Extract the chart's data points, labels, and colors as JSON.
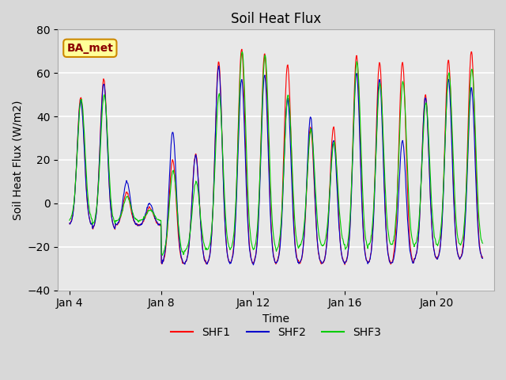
{
  "title": "Soil Heat Flux",
  "xlabel": "Time",
  "ylabel": "Soil Heat Flux (W/m2)",
  "ylim": [
    -40,
    80
  ],
  "yticks": [
    -40,
    -20,
    0,
    20,
    40,
    60,
    80
  ],
  "legend_labels": [
    "SHF1",
    "SHF2",
    "SHF3"
  ],
  "legend_colors": [
    "#ff0000",
    "#0000cc",
    "#00cc00"
  ],
  "annotation_text": "BA_met",
  "annotation_bg": "#ffff99",
  "annotation_border": "#cc8800",
  "xtick_labels": [
    "Jan 4",
    "Jan 8",
    "Jan 12",
    "Jan 16",
    "Jan 20"
  ],
  "xtick_positions": [
    4,
    8,
    12,
    16,
    20
  ],
  "xlim": [
    3.5,
    22.5
  ],
  "background_color": "#d8d8d8",
  "plot_bg_color": "#e8e8e8",
  "n_days": 18,
  "samples_per_day": 48,
  "start_day": 4
}
